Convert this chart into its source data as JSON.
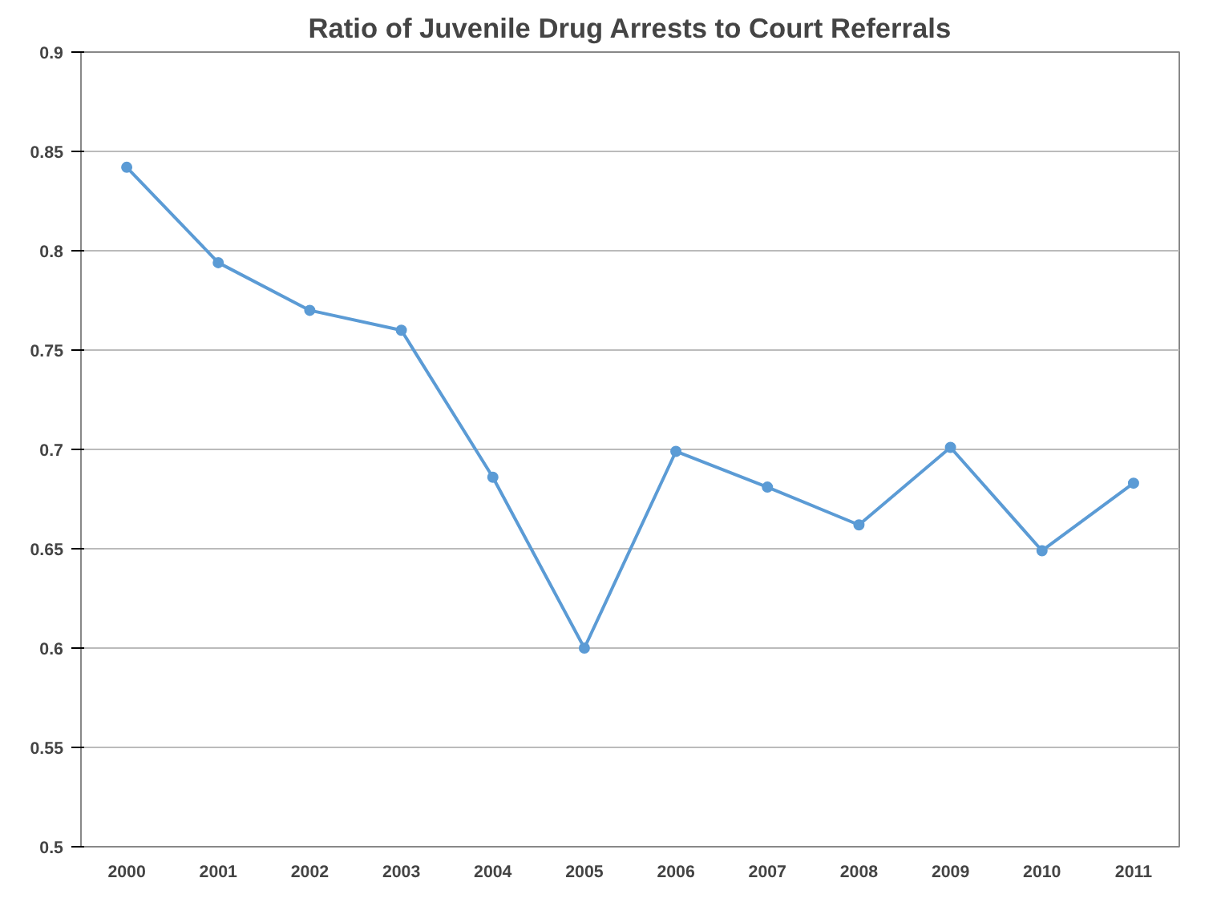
{
  "chart_data": {
    "type": "line",
    "title": "Ratio of Juvenile Drug Arrests to Court Referrals",
    "categories": [
      "2000",
      "2001",
      "2002",
      "2003",
      "2004",
      "2005",
      "2006",
      "2007",
      "2008",
      "2009",
      "2010",
      "2011"
    ],
    "series": [
      {
        "color": "#5b9bd5",
        "values": [
          0.842,
          0.794,
          0.77,
          0.76,
          0.686,
          0.6,
          0.699,
          0.681,
          0.662,
          0.701,
          0.649,
          0.683
        ]
      }
    ],
    "ylim": [
      0.5,
      0.9
    ],
    "yticks": [
      0.5,
      0.55,
      0.6,
      0.65,
      0.7,
      0.75,
      0.8,
      0.85,
      0.9
    ],
    "grid": "y",
    "marker": "circle",
    "line_style": "solid"
  }
}
